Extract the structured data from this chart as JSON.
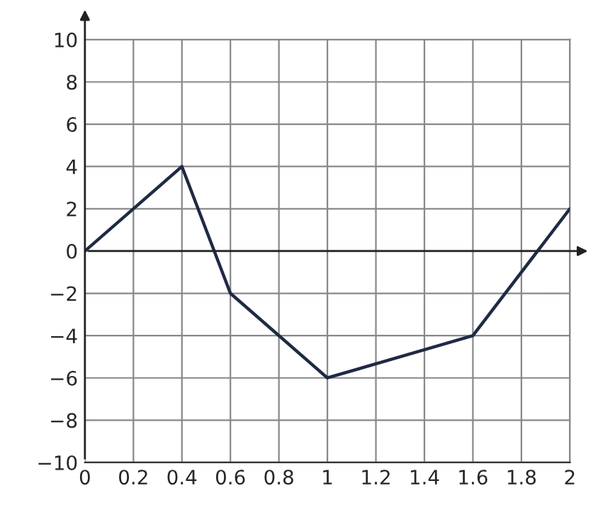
{
  "chart_data": {
    "type": "line",
    "x": [
      0,
      0.4,
      0.6,
      1,
      1.6,
      2
    ],
    "series": [
      {
        "color": "#1f2a44",
        "values": [
          0,
          4,
          -2,
          -6,
          -4,
          2
        ]
      }
    ],
    "xlim": [
      0,
      2
    ],
    "xticks": [
      0,
      0.2,
      0.4,
      0.6,
      0.8,
      1,
      1.2,
      1.4,
      1.6,
      1.8,
      2
    ],
    "ylim": [
      -10,
      10
    ],
    "yticks": [
      {
        "value": -10,
        "label": "−10"
      },
      {
        "value": -8,
        "label": "−8"
      },
      {
        "value": -6,
        "label": "−6"
      },
      {
        "value": -4,
        "label": "−4"
      },
      {
        "value": -2,
        "label": "−2"
      },
      0,
      2,
      4,
      6,
      8,
      10
    ],
    "grid": true,
    "marker": "none",
    "line_style": "solid"
  }
}
